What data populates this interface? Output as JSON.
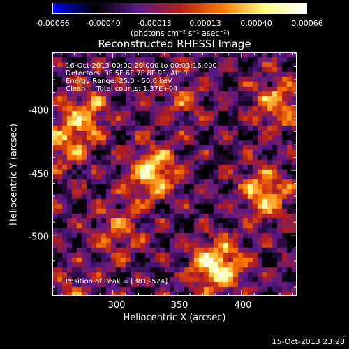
{
  "colorbar": {
    "ticks": [
      "-0.00066",
      "-0.00040",
      "-0.00013",
      "0.00013",
      "0.00040",
      "0.00066"
    ],
    "unit": "(photons cm⁻² s⁻¹ asec⁻²)"
  },
  "title": "Reconstructed RHESSI Image",
  "annotations": {
    "line1": "16-Oct-2013 00:00:20.000 to 00:03:16.000",
    "line2": "Detectors: 3F 5F 6F 7F 8F 9F, Att 0",
    "line3": "Energy Range: 25.0 - 50.0 keV",
    "line4": "Clean     Total counts: 1.37E+04",
    "peak": "Position of Peak = [381,-524]"
  },
  "timestamp": "15-Oct-2013 23:28",
  "chart_data": {
    "type": "heatmap",
    "title": "Reconstructed RHESSI Image",
    "xlabel": "Heliocentric X (arcsec)",
    "ylabel": "Heliocentric Y (arcsec)",
    "xlim": [
      253,
      443
    ],
    "ylim": [
      -547,
      -359
    ],
    "x_ticks": [
      "300",
      "350",
      "400"
    ],
    "y_ticks": [
      "-400",
      "-450",
      "-500"
    ],
    "x_tick_values": [
      300,
      350,
      400
    ],
    "y_tick_values": [
      -400,
      -450,
      -500
    ],
    "colorbar_range": [
      -0.00066,
      0.00066
    ],
    "colormap": [
      "#0000ff",
      "#000000",
      "#5a1a8c",
      "#b41e1e",
      "#ff7800",
      "#ffff80",
      "#ffffff"
    ],
    "peak": [
      381,
      -524
    ],
    "bright_sources": [
      {
        "x": 381,
        "y": -524,
        "intensity": 0.95
      },
      {
        "x": 331,
        "y": -452,
        "intensity": 0.85
      },
      {
        "x": 418,
        "y": -468,
        "intensity": 0.7
      },
      {
        "x": 428,
        "y": -398,
        "intensity": 0.6
      },
      {
        "x": 279,
        "y": -404,
        "intensity": 0.55
      },
      {
        "x": 305,
        "y": -496,
        "intensity": 0.45
      },
      {
        "x": 265,
        "y": -430,
        "intensity": 0.5
      },
      {
        "x": 352,
        "y": -395,
        "intensity": 0.35
      },
      {
        "x": 270,
        "y": -545,
        "intensity": 0.3
      }
    ]
  }
}
